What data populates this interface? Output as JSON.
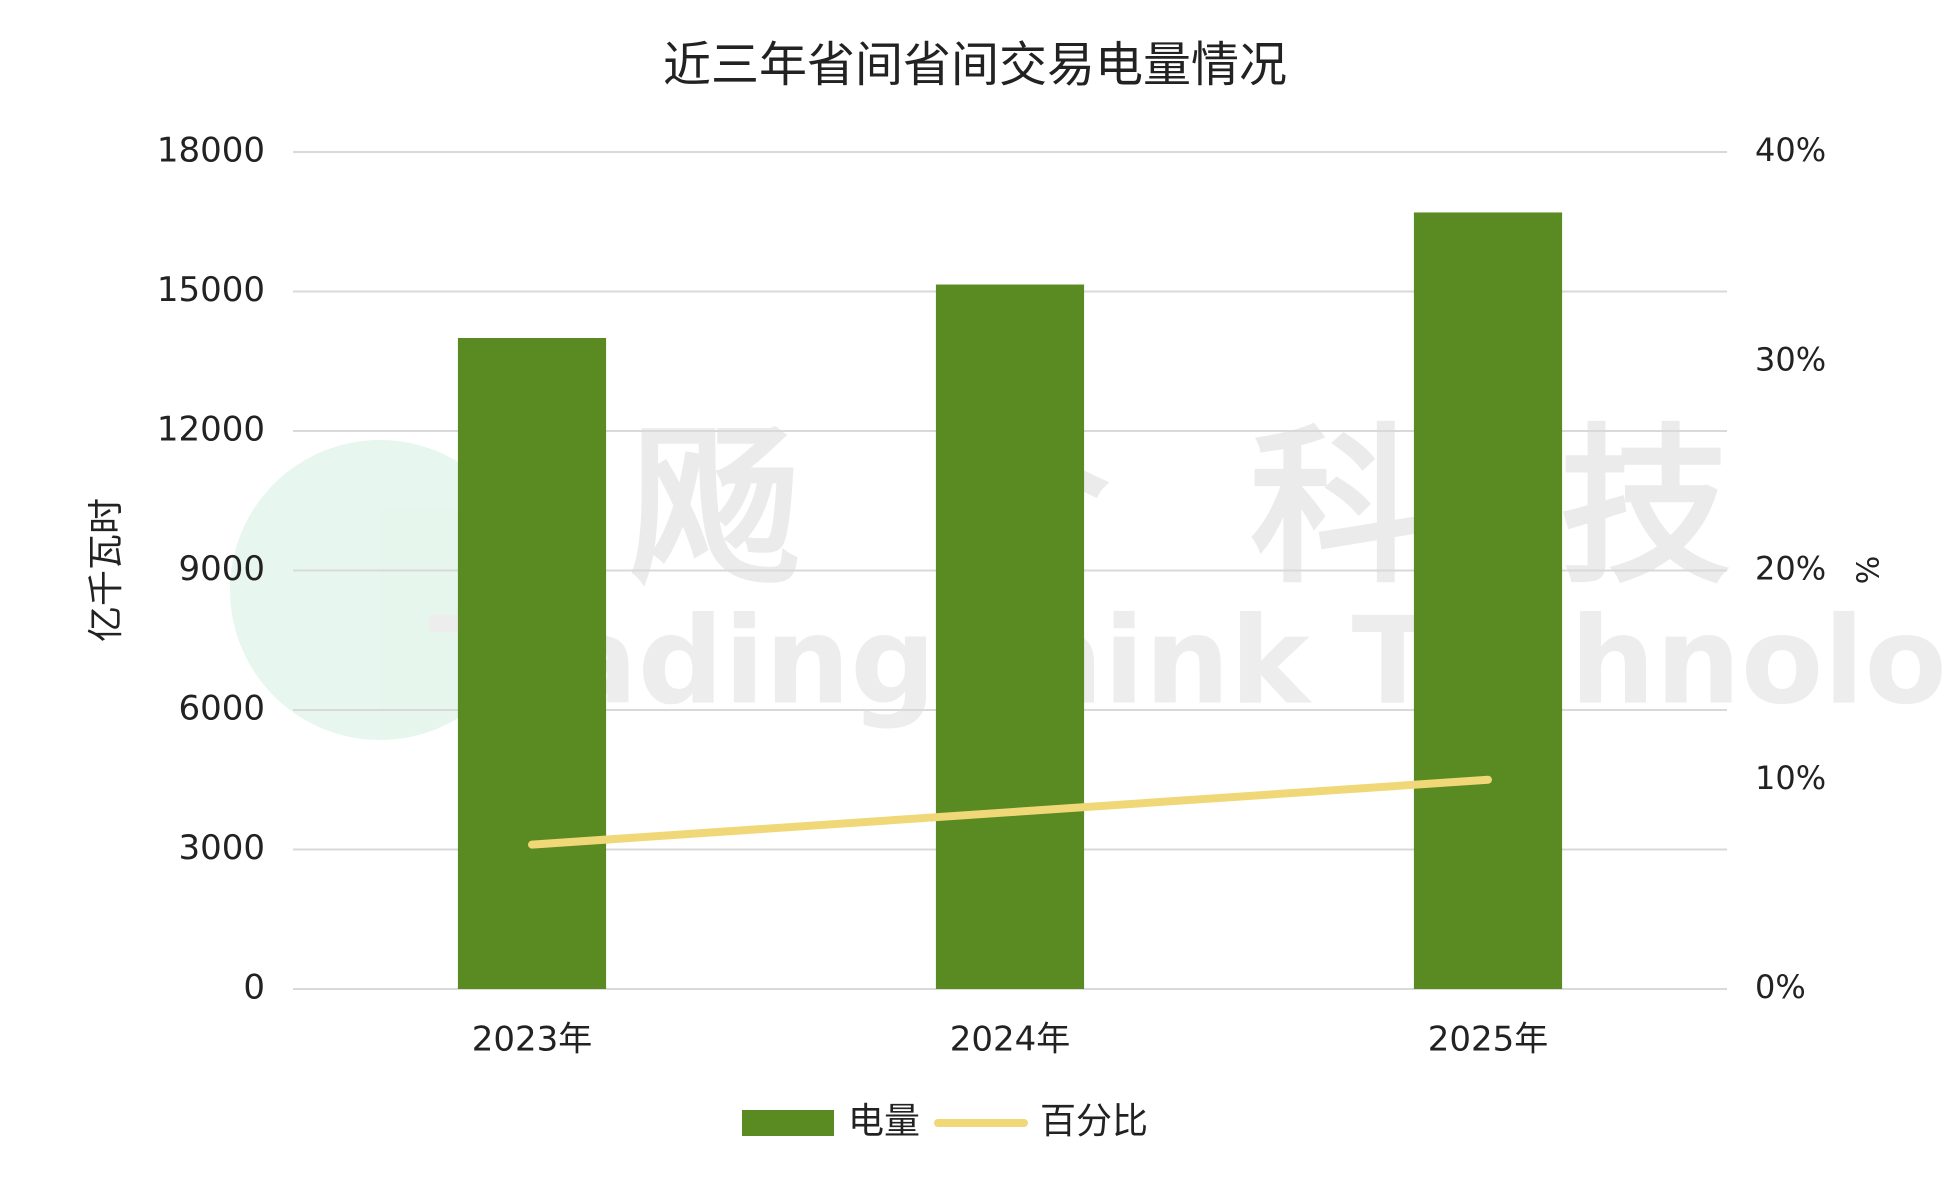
{
  "chart_data": {
    "type": "bar_line",
    "title": "近三年省间省间交易电量情况",
    "categories": [
      "2023年",
      "2024年",
      "2025年"
    ],
    "series": [
      {
        "name": "电量",
        "color": "#5a8a22",
        "type": "bar",
        "values": [
          14000,
          15150,
          16700
        ]
      },
      {
        "name": "百分比",
        "color": "#f0d878",
        "type": "line",
        "axis": "y2",
        "values": [
          6.9,
          8.45,
          10
        ]
      }
    ],
    "ylabel": "亿千瓦时",
    "y2label": "%",
    "ylim": [
      0,
      18000
    ],
    "yticks": [
      0,
      3000,
      6000,
      9000,
      12000,
      15000,
      18000
    ],
    "y2lim": [
      0,
      40
    ],
    "y2ticks": [
      {
        "value": 0,
        "label": "0%"
      },
      {
        "value": 10,
        "label": "10%"
      },
      {
        "value": 20,
        "label": "20%"
      },
      {
        "value": 30,
        "label": "30%"
      },
      {
        "value": 40,
        "label": "40%"
      }
    ],
    "grid": true,
    "legend": "bottom",
    "watermark": [
      "飏合科技",
      "TradingThink Technology"
    ]
  }
}
